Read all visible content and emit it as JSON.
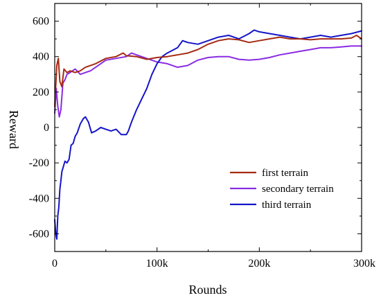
{
  "chart_data": {
    "type": "line",
    "xlabel": "Rounds",
    "ylabel": "Reward",
    "xlim": [
      0,
      300000
    ],
    "ylim": [
      -700,
      700
    ],
    "x_ticks": [
      0,
      100000,
      200000,
      300000
    ],
    "x_tick_labels": [
      "0",
      "100k",
      "200k",
      "300k"
    ],
    "y_ticks": [
      -600,
      -400,
      -200,
      0,
      200,
      400,
      600
    ],
    "y_tick_labels": [
      "-600",
      "-400",
      "-200",
      "0",
      "200",
      "400",
      "600"
    ],
    "grid": false,
    "legend_position": "lower-right",
    "series": [
      {
        "name": "first terrain",
        "color": "#a52a12",
        "x": [
          0,
          2000,
          3500,
          5000,
          7000,
          9000,
          12000,
          15000,
          20000,
          25000,
          30000,
          40000,
          50000,
          55000,
          60000,
          65000,
          67000,
          70000,
          80000,
          90000,
          100000,
          110000,
          120000,
          130000,
          140000,
          150000,
          160000,
          170000,
          180000,
          190000,
          200000,
          210000,
          220000,
          230000,
          240000,
          250000,
          260000,
          270000,
          280000,
          290000,
          295000,
          300000
        ],
        "y": [
          120,
          350,
          390,
          260,
          230,
          330,
          310,
          320,
          310,
          320,
          340,
          360,
          390,
          395,
          400,
          415,
          420,
          405,
          400,
          385,
          395,
          400,
          410,
          420,
          440,
          470,
          490,
          500,
          495,
          480,
          490,
          500,
          510,
          500,
          500,
          495,
          500,
          500,
          500,
          505,
          520,
          500
        ]
      },
      {
        "name": "secondary terrain",
        "color": "#8a2be2",
        "x": [
          0,
          1500,
          3000,
          4500,
          6000,
          8000,
          10000,
          12000,
          15000,
          20000,
          25000,
          30000,
          35000,
          40000,
          50000,
          60000,
          70000,
          75000,
          80000,
          90000,
          100000,
          110000,
          120000,
          130000,
          140000,
          150000,
          160000,
          170000,
          180000,
          190000,
          200000,
          210000,
          220000,
          230000,
          240000,
          250000,
          260000,
          270000,
          280000,
          290000,
          300000
        ],
        "y": [
          80,
          220,
          120,
          60,
          100,
          250,
          270,
          300,
          310,
          330,
          300,
          310,
          320,
          340,
          380,
          390,
          400,
          420,
          410,
          390,
          370,
          360,
          340,
          350,
          380,
          395,
          400,
          400,
          385,
          380,
          385,
          395,
          410,
          420,
          430,
          440,
          450,
          450,
          455,
          460,
          460
        ]
      },
      {
        "name": "third terrain",
        "color": "#1414c8",
        "x": [
          0,
          1000,
          2000,
          3000,
          4000,
          5000,
          6000,
          7000,
          8000,
          10000,
          12000,
          14000,
          16000,
          18000,
          20000,
          22000,
          25000,
          28000,
          30000,
          33000,
          36000,
          40000,
          45000,
          50000,
          55000,
          60000,
          65000,
          70000,
          72000,
          75000,
          80000,
          90000,
          95000,
          100000,
          105000,
          110000,
          120000,
          125000,
          130000,
          140000,
          150000,
          160000,
          170000,
          180000,
          190000,
          195000,
          200000,
          210000,
          220000,
          230000,
          240000,
          250000,
          260000,
          270000,
          280000,
          290000,
          300000
        ],
        "y": [
          -520,
          -600,
          -630,
          -500,
          -450,
          -350,
          -300,
          -250,
          -230,
          -190,
          -200,
          -180,
          -100,
          -90,
          -50,
          -30,
          20,
          50,
          60,
          30,
          -30,
          -20,
          0,
          -10,
          -20,
          -10,
          -40,
          -40,
          -20,
          30,
          100,
          220,
          300,
          360,
          400,
          420,
          450,
          490,
          480,
          470,
          490,
          510,
          520,
          500,
          530,
          550,
          540,
          530,
          520,
          510,
          500,
          510,
          520,
          510,
          520,
          530,
          545
        ]
      }
    ]
  }
}
